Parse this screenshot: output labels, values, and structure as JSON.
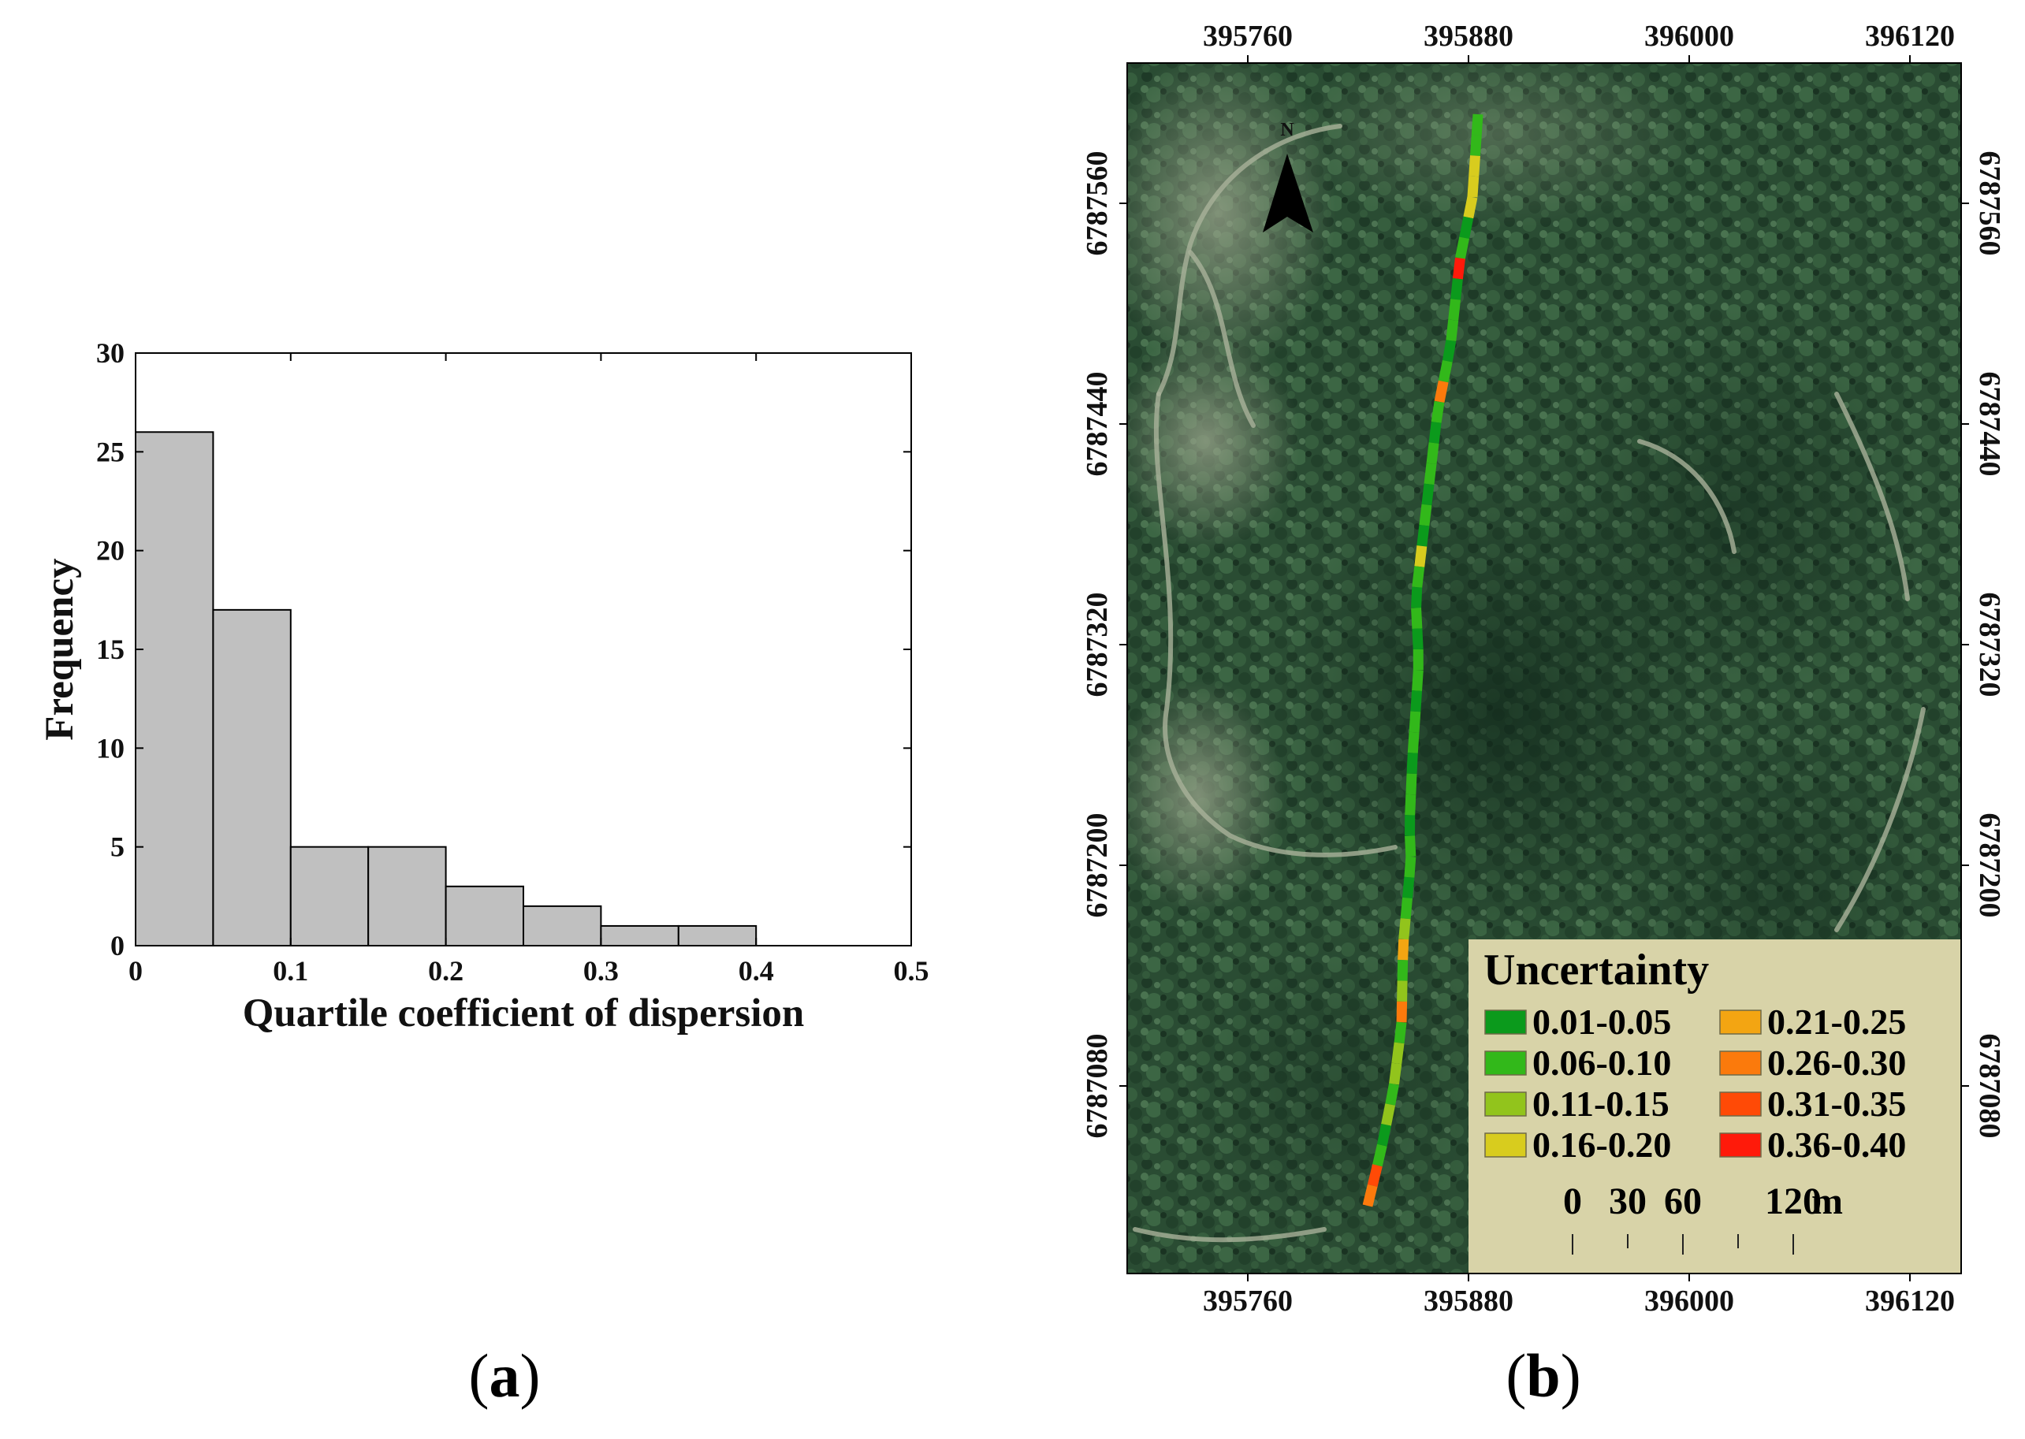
{
  "panel_a": {
    "caption_letter": "a",
    "chart_data": {
      "type": "bar",
      "title": "",
      "xlabel": "Quartile coefficient of dispersion",
      "ylabel": "Frequency",
      "bin_edges": [
        0,
        0.05,
        0.1,
        0.15,
        0.2,
        0.25,
        0.3,
        0.35,
        0.4
      ],
      "values": [
        26,
        17,
        5,
        5,
        3,
        2,
        1,
        1
      ],
      "xlim": [
        0,
        0.5
      ],
      "ylim": [
        0,
        30
      ],
      "x_ticks": [
        0,
        0.1,
        0.2,
        0.3,
        0.4,
        0.5
      ],
      "x_tick_labels": [
        "0",
        "0.1",
        "0.2",
        "0.3",
        "0.4",
        "0.5"
      ],
      "y_ticks": [
        0,
        5,
        10,
        15,
        20,
        25,
        30
      ],
      "y_tick_labels": [
        "0",
        "5",
        "10",
        "15",
        "20",
        "25",
        "30"
      ],
      "bar_color": "#c0c0c0",
      "edge_color": "#000000"
    }
  },
  "panel_b": {
    "caption_letter": "b",
    "map": {
      "x_ticks": [
        "395760",
        "395880",
        "396000",
        "396120"
      ],
      "y_ticks": [
        "6787560",
        "6787440",
        "6787320",
        "6787200",
        "6787080"
      ],
      "north_label": "N",
      "legend_title": "Uncertainty",
      "legend_items": [
        {
          "label": "0.01-0.05",
          "color": "#0b9a1c"
        },
        {
          "label": "0.06-0.10",
          "color": "#32b81a"
        },
        {
          "label": "0.11-0.15",
          "color": "#92c41c"
        },
        {
          "label": "0.16-0.20",
          "color": "#d8cc1e"
        },
        {
          "label": "0.21-0.25",
          "color": "#f3a512"
        },
        {
          "label": "0.26-0.30",
          "color": "#fb7a0c"
        },
        {
          "label": "0.31-0.35",
          "color": "#ff4a06"
        },
        {
          "label": "0.36-0.40",
          "color": "#ff1a0a"
        }
      ],
      "scale_labels": [
        "0",
        "30",
        "60",
        "120"
      ],
      "scale_unit": "m",
      "track_segment_classes": [
        1,
        1,
        3,
        3,
        3,
        0,
        1,
        7,
        0,
        1,
        1,
        0,
        1,
        5,
        1,
        0,
        1,
        1,
        0,
        1,
        0,
        3,
        1,
        0,
        1,
        0,
        1,
        1,
        0,
        1,
        1,
        0,
        1,
        1,
        0,
        1,
        1,
        0,
        1,
        2,
        4,
        1,
        2,
        5,
        1,
        2,
        2,
        1,
        2,
        0,
        1,
        6,
        5
      ]
    }
  }
}
